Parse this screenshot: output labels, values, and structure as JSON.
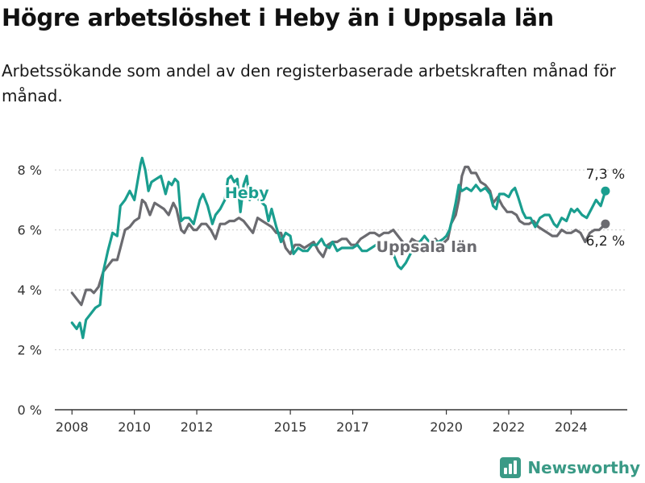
{
  "title": "Högre arbetslöshet i Heby än i Uppsala län",
  "subtitle": "Arbetssökande som andel av den registerbaserade arbetskraften månad för månad.",
  "brand": {
    "name": "Newsworthy",
    "icon": "bar-chart-logo-icon"
  },
  "chart_data": {
    "type": "line",
    "title": "Högre arbetslöshet i Heby än i Uppsala län",
    "subtitle": "Arbetssökande som andel av den registerbaserade arbetskraften månad för månad.",
    "xlabel": "",
    "ylabel": "",
    "x_range": [
      2007.45,
      2025.8
    ],
    "ylim": [
      0,
      8.3
    ],
    "y_ticks": [
      0,
      2,
      4,
      6,
      8
    ],
    "y_tick_labels": [
      "0 %",
      "2 %",
      "4 %",
      "6 %",
      "8 %"
    ],
    "x_ticks": [
      2008,
      2010,
      2012,
      2015,
      2017,
      2020,
      2022,
      2024
    ],
    "x_tick_labels": [
      "2008",
      "2010",
      "2012",
      "2015",
      "2017",
      "2020",
      "2022",
      "2024"
    ],
    "grid": "horizontal",
    "legend": "inline labels",
    "series": [
      {
        "name": "Heby",
        "color": "#1a9e8f",
        "label": "Heby",
        "end_label": "7,3 %",
        "points": [
          [
            2008.0,
            2.9
          ],
          [
            2008.15,
            2.7
          ],
          [
            2008.25,
            2.9
          ],
          [
            2008.35,
            2.4
          ],
          [
            2008.45,
            3.0
          ],
          [
            2008.6,
            3.2
          ],
          [
            2008.75,
            3.4
          ],
          [
            2008.9,
            3.5
          ],
          [
            2009.0,
            4.6
          ],
          [
            2009.15,
            5.3
          ],
          [
            2009.3,
            5.9
          ],
          [
            2009.45,
            5.8
          ],
          [
            2009.55,
            6.8
          ],
          [
            2009.7,
            7.0
          ],
          [
            2009.85,
            7.3
          ],
          [
            2010.0,
            7.0
          ],
          [
            2010.1,
            7.6
          ],
          [
            2010.2,
            8.2
          ],
          [
            2010.25,
            8.4
          ],
          [
            2010.35,
            8.0
          ],
          [
            2010.45,
            7.3
          ],
          [
            2010.55,
            7.6
          ],
          [
            2010.7,
            7.7
          ],
          [
            2010.85,
            7.8
          ],
          [
            2011.0,
            7.2
          ],
          [
            2011.1,
            7.6
          ],
          [
            2011.2,
            7.5
          ],
          [
            2011.3,
            7.7
          ],
          [
            2011.4,
            7.6
          ],
          [
            2011.5,
            6.3
          ],
          [
            2011.6,
            6.4
          ],
          [
            2011.75,
            6.4
          ],
          [
            2011.9,
            6.2
          ],
          [
            2012.0,
            6.6
          ],
          [
            2012.1,
            7.0
          ],
          [
            2012.2,
            7.2
          ],
          [
            2012.35,
            6.8
          ],
          [
            2012.5,
            6.2
          ],
          [
            2012.6,
            6.5
          ],
          [
            2012.75,
            6.7
          ],
          [
            2012.9,
            7.0
          ],
          [
            2013.0,
            7.7
          ],
          [
            2013.1,
            7.8
          ],
          [
            2013.2,
            7.6
          ],
          [
            2013.3,
            7.7
          ],
          [
            2013.4,
            6.6
          ],
          [
            2013.5,
            7.5
          ],
          [
            2013.6,
            7.8
          ],
          [
            2013.7,
            7.0
          ],
          [
            2013.8,
            7.4
          ],
          [
            2013.9,
            7.1
          ],
          [
            2014.0,
            7.0
          ],
          [
            2014.1,
            6.9
          ],
          [
            2014.2,
            6.8
          ],
          [
            2014.3,
            6.3
          ],
          [
            2014.4,
            6.7
          ],
          [
            2014.55,
            6.1
          ],
          [
            2014.7,
            5.6
          ],
          [
            2014.85,
            5.9
          ],
          [
            2015.0,
            5.8
          ],
          [
            2015.1,
            5.2
          ],
          [
            2015.25,
            5.4
          ],
          [
            2015.4,
            5.3
          ],
          [
            2015.55,
            5.3
          ],
          [
            2015.7,
            5.5
          ],
          [
            2015.85,
            5.5
          ],
          [
            2016.0,
            5.7
          ],
          [
            2016.1,
            5.5
          ],
          [
            2016.25,
            5.4
          ],
          [
            2016.35,
            5.6
          ],
          [
            2016.5,
            5.3
          ],
          [
            2016.65,
            5.4
          ],
          [
            2016.8,
            5.4
          ],
          [
            2017.0,
            5.4
          ],
          [
            2017.15,
            5.5
          ],
          [
            2017.3,
            5.3
          ],
          [
            2017.45,
            5.3
          ],
          [
            2017.6,
            5.4
          ],
          [
            2017.75,
            5.5
          ],
          [
            2017.9,
            5.6
          ],
          [
            2018.0,
            5.5
          ],
          [
            2018.15,
            5.3
          ],
          [
            2018.3,
            5.2
          ],
          [
            2018.45,
            4.8
          ],
          [
            2018.55,
            4.7
          ],
          [
            2018.7,
            4.9
          ],
          [
            2018.85,
            5.2
          ],
          [
            2019.0,
            5.4
          ],
          [
            2019.15,
            5.6
          ],
          [
            2019.3,
            5.8
          ],
          [
            2019.45,
            5.6
          ],
          [
            2019.6,
            5.6
          ],
          [
            2019.75,
            5.6
          ],
          [
            2019.9,
            5.7
          ],
          [
            2020.0,
            5.8
          ],
          [
            2020.1,
            6.0
          ],
          [
            2020.2,
            6.4
          ],
          [
            2020.3,
            6.9
          ],
          [
            2020.4,
            7.5
          ],
          [
            2020.5,
            7.3
          ],
          [
            2020.65,
            7.4
          ],
          [
            2020.8,
            7.3
          ],
          [
            2020.95,
            7.5
          ],
          [
            2021.1,
            7.3
          ],
          [
            2021.25,
            7.4
          ],
          [
            2021.4,
            7.2
          ],
          [
            2021.5,
            6.8
          ],
          [
            2021.6,
            6.7
          ],
          [
            2021.7,
            7.2
          ],
          [
            2021.85,
            7.2
          ],
          [
            2022.0,
            7.1
          ],
          [
            2022.1,
            7.3
          ],
          [
            2022.2,
            7.4
          ],
          [
            2022.3,
            7.1
          ],
          [
            2022.45,
            6.6
          ],
          [
            2022.55,
            6.4
          ],
          [
            2022.7,
            6.4
          ],
          [
            2022.85,
            6.1
          ],
          [
            2023.0,
            6.4
          ],
          [
            2023.15,
            6.5
          ],
          [
            2023.3,
            6.5
          ],
          [
            2023.45,
            6.2
          ],
          [
            2023.55,
            6.1
          ],
          [
            2023.7,
            6.4
          ],
          [
            2023.85,
            6.3
          ],
          [
            2024.0,
            6.7
          ],
          [
            2024.1,
            6.6
          ],
          [
            2024.2,
            6.7
          ],
          [
            2024.35,
            6.5
          ],
          [
            2024.5,
            6.4
          ],
          [
            2024.65,
            6.7
          ],
          [
            2024.8,
            7.0
          ],
          [
            2024.95,
            6.8
          ],
          [
            2025.1,
            7.3
          ]
        ]
      },
      {
        "name": "Uppsala län",
        "color": "#6b6b70",
        "label": "Uppsala län",
        "end_label": "6,2 %",
        "points": [
          [
            2008.0,
            3.9
          ],
          [
            2008.15,
            3.7
          ],
          [
            2008.3,
            3.5
          ],
          [
            2008.45,
            4.0
          ],
          [
            2008.6,
            4.0
          ],
          [
            2008.7,
            3.9
          ],
          [
            2008.85,
            4.1
          ],
          [
            2009.0,
            4.6
          ],
          [
            2009.15,
            4.8
          ],
          [
            2009.3,
            5.0
          ],
          [
            2009.45,
            5.0
          ],
          [
            2009.55,
            5.4
          ],
          [
            2009.7,
            6.0
          ],
          [
            2009.85,
            6.1
          ],
          [
            2010.0,
            6.3
          ],
          [
            2010.15,
            6.4
          ],
          [
            2010.25,
            7.0
          ],
          [
            2010.35,
            6.9
          ],
          [
            2010.5,
            6.5
          ],
          [
            2010.65,
            6.9
          ],
          [
            2010.8,
            6.8
          ],
          [
            2010.95,
            6.7
          ],
          [
            2011.1,
            6.5
          ],
          [
            2011.25,
            6.9
          ],
          [
            2011.35,
            6.7
          ],
          [
            2011.5,
            6.0
          ],
          [
            2011.6,
            5.9
          ],
          [
            2011.75,
            6.2
          ],
          [
            2011.9,
            6.0
          ],
          [
            2012.0,
            6.0
          ],
          [
            2012.15,
            6.2
          ],
          [
            2012.3,
            6.2
          ],
          [
            2012.45,
            6.0
          ],
          [
            2012.6,
            5.7
          ],
          [
            2012.75,
            6.2
          ],
          [
            2012.9,
            6.2
          ],
          [
            2013.05,
            6.3
          ],
          [
            2013.2,
            6.3
          ],
          [
            2013.35,
            6.4
          ],
          [
            2013.5,
            6.3
          ],
          [
            2013.65,
            6.1
          ],
          [
            2013.8,
            5.9
          ],
          [
            2013.95,
            6.4
          ],
          [
            2014.1,
            6.3
          ],
          [
            2014.25,
            6.2
          ],
          [
            2014.4,
            6.1
          ],
          [
            2014.55,
            5.9
          ],
          [
            2014.7,
            5.9
          ],
          [
            2014.85,
            5.4
          ],
          [
            2015.0,
            5.2
          ],
          [
            2015.15,
            5.5
          ],
          [
            2015.3,
            5.5
          ],
          [
            2015.45,
            5.4
          ],
          [
            2015.6,
            5.5
          ],
          [
            2015.75,
            5.6
          ],
          [
            2015.9,
            5.3
          ],
          [
            2016.05,
            5.1
          ],
          [
            2016.2,
            5.5
          ],
          [
            2016.35,
            5.6
          ],
          [
            2016.5,
            5.6
          ],
          [
            2016.65,
            5.7
          ],
          [
            2016.8,
            5.7
          ],
          [
            2016.95,
            5.5
          ],
          [
            2017.1,
            5.5
          ],
          [
            2017.25,
            5.7
          ],
          [
            2017.4,
            5.8
          ],
          [
            2017.55,
            5.9
          ],
          [
            2017.7,
            5.9
          ],
          [
            2017.85,
            5.8
          ],
          [
            2018.0,
            5.9
          ],
          [
            2018.15,
            5.9
          ],
          [
            2018.3,
            6.0
          ],
          [
            2018.45,
            5.8
          ],
          [
            2018.6,
            5.6
          ],
          [
            2018.75,
            5.4
          ],
          [
            2018.9,
            5.7
          ],
          [
            2019.05,
            5.6
          ],
          [
            2019.2,
            5.6
          ],
          [
            2019.35,
            5.4
          ],
          [
            2019.5,
            5.6
          ],
          [
            2019.65,
            5.7
          ],
          [
            2019.8,
            5.5
          ],
          [
            2019.95,
            5.6
          ],
          [
            2020.05,
            5.7
          ],
          [
            2020.15,
            6.2
          ],
          [
            2020.3,
            6.5
          ],
          [
            2020.4,
            7.0
          ],
          [
            2020.5,
            7.8
          ],
          [
            2020.6,
            8.1
          ],
          [
            2020.7,
            8.1
          ],
          [
            2020.8,
            7.9
          ],
          [
            2020.95,
            7.9
          ],
          [
            2021.1,
            7.6
          ],
          [
            2021.25,
            7.5
          ],
          [
            2021.4,
            7.3
          ],
          [
            2021.5,
            6.9
          ],
          [
            2021.65,
            7.1
          ],
          [
            2021.8,
            6.8
          ],
          [
            2021.95,
            6.6
          ],
          [
            2022.1,
            6.6
          ],
          [
            2022.25,
            6.5
          ],
          [
            2022.35,
            6.3
          ],
          [
            2022.5,
            6.2
          ],
          [
            2022.65,
            6.2
          ],
          [
            2022.8,
            6.3
          ],
          [
            2022.95,
            6.1
          ],
          [
            2023.1,
            6.0
          ],
          [
            2023.25,
            5.9
          ],
          [
            2023.4,
            5.8
          ],
          [
            2023.55,
            5.8
          ],
          [
            2023.7,
            6.0
          ],
          [
            2023.85,
            5.9
          ],
          [
            2024.0,
            5.9
          ],
          [
            2024.15,
            6.0
          ],
          [
            2024.3,
            5.9
          ],
          [
            2024.45,
            5.6
          ],
          [
            2024.6,
            5.9
          ],
          [
            2024.75,
            6.0
          ],
          [
            2024.9,
            6.0
          ],
          [
            2025.1,
            6.2
          ]
        ]
      }
    ]
  }
}
